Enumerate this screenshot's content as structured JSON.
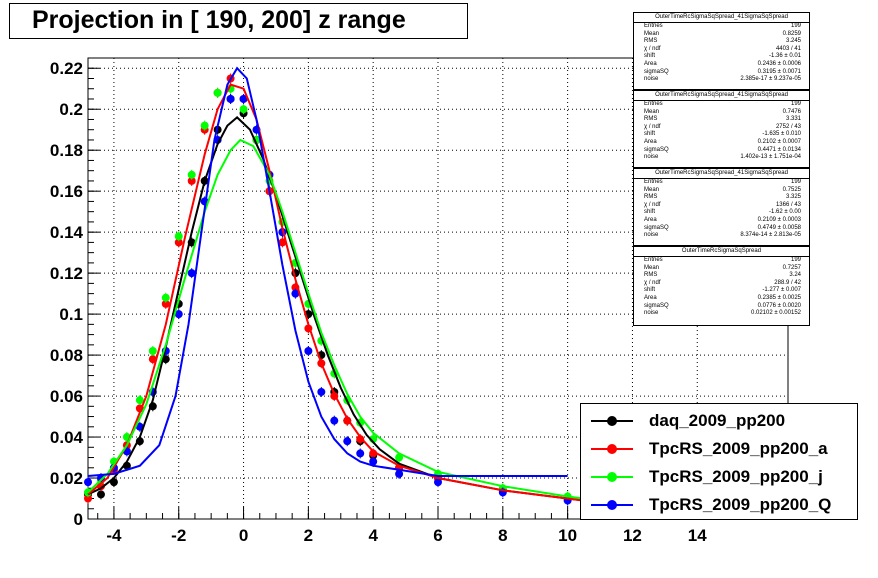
{
  "title": "Projection in [ 190, 200] z range",
  "colors": {
    "daq": "#000000",
    "a": "#ff0000",
    "j": "#00ff00",
    "Q": "#0000ff"
  },
  "stats": [
    {
      "name": "OuterTimeRcSigmaSqSpread_41SigmaSqSpread",
      "rows": [
        [
          "Entries",
          "199"
        ],
        [
          "Mean",
          "0.8259"
        ],
        [
          "RMS",
          "3.245"
        ],
        [
          "χ  / ndf",
          "4403 / 41"
        ],
        [
          "shift",
          "-1.36 ± 0.01"
        ],
        [
          "Area",
          "0.2436 ± 0.0006"
        ],
        [
          "sigmaSQ",
          "0.3195 ± 0.0071"
        ],
        [
          "noise",
          "2.385e-17 ± 9.237e-05"
        ]
      ]
    },
    {
      "name": "OuterTimeRcSigmaSqSpread_41SigmaSqSpread",
      "rows": [
        [
          "Entries",
          "199"
        ],
        [
          "Mean",
          "0.7476"
        ],
        [
          "RMS",
          "3.331"
        ],
        [
          "χ  / ndf",
          "2752 / 43"
        ],
        [
          "shift",
          "-1.635 ± 0.010"
        ],
        [
          "Area",
          "0.2102 ± 0.0007"
        ],
        [
          "sigmaSQ",
          "0.4471 ± 0.0134"
        ],
        [
          "noise",
          "1.402e-13 ± 1.751e-04"
        ]
      ]
    },
    {
      "name": "OuterTimeRcSigmaSqSpread_41SigmaSqSpread",
      "rows": [
        [
          "Entries",
          "199"
        ],
        [
          "Mean",
          "0.7525"
        ],
        [
          "RMS",
          "3.325"
        ],
        [
          "χ  / ndf",
          "1366 / 43"
        ],
        [
          "shift",
          "-1.62 ± 0.00"
        ],
        [
          "Area",
          "0.2109 ± 0.0003"
        ],
        [
          "sigmaSQ",
          "0.4749 ± 0.0058"
        ],
        [
          "noise",
          "8.374e-14 ± 2.813e-05"
        ]
      ]
    },
    {
      "name": "OuterTimeRcSigmaSqSpread",
      "rows": [
        [
          "Entries",
          "199"
        ],
        [
          "Mean",
          "0.7257"
        ],
        [
          "RMS",
          "3.24"
        ],
        [
          "χ  / ndf",
          "288.9 / 42"
        ],
        [
          "shift",
          "-1.277 ± 0.007"
        ],
        [
          "Area",
          "0.2385 ± 0.0025"
        ],
        [
          "sigmaSQ",
          "0.0776 ± 0.0020"
        ],
        [
          "noise",
          "0.02102 ± 0.00152"
        ]
      ]
    }
  ],
  "legend": [
    {
      "label": "daq_2009_pp200",
      "color": "#000000"
    },
    {
      "label": "TpcRS_2009_pp200_a",
      "color": "#ff0000"
    },
    {
      "label": "TpcRS_2009_pp200_j",
      "color": "#00ff00"
    },
    {
      "label": "TpcRS_2009_pp200_Q",
      "color": "#0000ff"
    }
  ],
  "chart_data": {
    "type": "scatter",
    "title": "Projection in [ 190, 200] z range",
    "xlim": [
      -4.8,
      16.8
    ],
    "ylim": [
      0,
      0.225
    ],
    "x_ticks": [
      -4,
      -2,
      0,
      2,
      4,
      6,
      8,
      10,
      12,
      14
    ],
    "y_ticks": [
      0,
      0.02,
      0.04,
      0.06,
      0.08,
      0.1,
      0.12,
      0.14,
      0.16,
      0.18,
      0.2,
      0.22
    ],
    "y_tick_labels": [
      "0",
      "0.02",
      "0.04",
      "0.06",
      "0.08",
      "0.1",
      "0.12",
      "0.14",
      "0.16",
      "0.18",
      "0.2",
      "0.22"
    ],
    "grid": true,
    "legend_position": "bottom-right",
    "series": [
      {
        "name": "daq_2009_pp200",
        "color": "#000000",
        "points": [
          [
            -4.8,
            0.012
          ],
          [
            -4.4,
            0.012
          ],
          [
            -4,
            0.018
          ],
          [
            -3.6,
            0.026
          ],
          [
            -3.2,
            0.038
          ],
          [
            -2.8,
            0.055
          ],
          [
            -2.4,
            0.078
          ],
          [
            -2,
            0.105
          ],
          [
            -1.6,
            0.135
          ],
          [
            -1.2,
            0.165
          ],
          [
            -0.8,
            0.19
          ],
          [
            -0.4,
            0.205
          ],
          [
            0,
            0.198
          ],
          [
            0.4,
            0.185
          ],
          [
            0.8,
            0.16
          ],
          [
            1.2,
            0.14
          ],
          [
            1.6,
            0.12
          ],
          [
            2,
            0.1
          ],
          [
            2.4,
            0.08
          ],
          [
            2.8,
            0.062
          ],
          [
            3.2,
            0.048
          ],
          [
            3.6,
            0.038
          ],
          [
            4,
            0.031
          ],
          [
            4.8,
            0.025
          ],
          [
            6,
            0.02
          ],
          [
            8,
            0.014
          ],
          [
            10,
            0.01
          ],
          [
            11,
            0.008
          ]
        ],
        "fit": [
          [
            -4.8,
            0.012
          ],
          [
            -4.4,
            0.015
          ],
          [
            -4,
            0.02
          ],
          [
            -3.6,
            0.028
          ],
          [
            -3.2,
            0.04
          ],
          [
            -2.8,
            0.058
          ],
          [
            -2.4,
            0.084
          ],
          [
            -2,
            0.112
          ],
          [
            -1.6,
            0.14
          ],
          [
            -1.2,
            0.165
          ],
          [
            -0.8,
            0.183
          ],
          [
            -0.5,
            0.192
          ],
          [
            -0.2,
            0.196
          ],
          [
            0.2,
            0.19
          ],
          [
            0.6,
            0.176
          ],
          [
            1,
            0.158
          ],
          [
            1.4,
            0.138
          ],
          [
            1.8,
            0.118
          ],
          [
            2.2,
            0.098
          ],
          [
            2.6,
            0.08
          ],
          [
            3,
            0.064
          ],
          [
            3.4,
            0.051
          ],
          [
            3.8,
            0.041
          ],
          [
            4.2,
            0.034
          ],
          [
            4.8,
            0.027
          ],
          [
            6,
            0.02
          ],
          [
            8,
            0.014
          ],
          [
            10,
            0.01
          ],
          [
            11,
            0.008
          ]
        ]
      },
      {
        "name": "TpcRS_2009_pp200_a",
        "color": "#ff0000",
        "points": [
          [
            -4.8,
            0.01
          ],
          [
            -4.4,
            0.016
          ],
          [
            -4,
            0.024
          ],
          [
            -3.6,
            0.036
          ],
          [
            -3.2,
            0.054
          ],
          [
            -2.8,
            0.078
          ],
          [
            -2.4,
            0.105
          ],
          [
            -2,
            0.135
          ],
          [
            -1.6,
            0.165
          ],
          [
            -1.2,
            0.19
          ],
          [
            -0.8,
            0.208
          ],
          [
            -0.4,
            0.215
          ],
          [
            0,
            0.205
          ],
          [
            0.4,
            0.185
          ],
          [
            0.8,
            0.16
          ],
          [
            1.2,
            0.135
          ],
          [
            1.6,
            0.113
          ],
          [
            2,
            0.093
          ],
          [
            2.4,
            0.076
          ],
          [
            2.8,
            0.06
          ],
          [
            3.2,
            0.048
          ],
          [
            3.6,
            0.039
          ],
          [
            4,
            0.032
          ],
          [
            4.8,
            0.025
          ],
          [
            6,
            0.02
          ],
          [
            8,
            0.014
          ],
          [
            10,
            0.01
          ],
          [
            11,
            0.008
          ]
        ],
        "fit": [
          [
            -4.8,
            0.012
          ],
          [
            -4.2,
            0.02
          ],
          [
            -3.6,
            0.036
          ],
          [
            -3,
            0.06
          ],
          [
            -2.4,
            0.095
          ],
          [
            -1.8,
            0.138
          ],
          [
            -1.2,
            0.178
          ],
          [
            -0.8,
            0.2
          ],
          [
            -0.4,
            0.212
          ],
          [
            0,
            0.21
          ],
          [
            0.4,
            0.195
          ],
          [
            0.8,
            0.17
          ],
          [
            1.2,
            0.142
          ],
          [
            1.6,
            0.117
          ],
          [
            2,
            0.095
          ],
          [
            2.4,
            0.076
          ],
          [
            2.8,
            0.061
          ],
          [
            3.2,
            0.049
          ],
          [
            3.6,
            0.04
          ],
          [
            4,
            0.033
          ],
          [
            4.8,
            0.026
          ],
          [
            6,
            0.02
          ],
          [
            8,
            0.014
          ],
          [
            10,
            0.01
          ],
          [
            11,
            0.008
          ]
        ]
      },
      {
        "name": "TpcRS_2009_pp200_j",
        "color": "#00ff00",
        "points": [
          [
            -4.8,
            0.013
          ],
          [
            -4.4,
            0.019
          ],
          [
            -4,
            0.028
          ],
          [
            -3.6,
            0.04
          ],
          [
            -3.2,
            0.058
          ],
          [
            -2.8,
            0.082
          ],
          [
            -2.4,
            0.108
          ],
          [
            -2,
            0.138
          ],
          [
            -1.6,
            0.168
          ],
          [
            -1.2,
            0.192
          ],
          [
            -0.8,
            0.208
          ],
          [
            -0.4,
            0.21
          ],
          [
            0,
            0.2
          ],
          [
            0.4,
            0.185
          ],
          [
            0.8,
            0.165
          ],
          [
            1.2,
            0.145
          ],
          [
            1.6,
            0.125
          ],
          [
            2,
            0.105
          ],
          [
            2.4,
            0.087
          ],
          [
            2.8,
            0.071
          ],
          [
            3.2,
            0.058
          ],
          [
            3.6,
            0.047
          ],
          [
            4,
            0.039
          ],
          [
            4.8,
            0.03
          ],
          [
            6,
            0.022
          ],
          [
            8,
            0.015
          ],
          [
            10,
            0.011
          ],
          [
            11,
            0.009
          ]
        ],
        "fit": [
          [
            -4.8,
            0.013
          ],
          [
            -4.2,
            0.022
          ],
          [
            -3.6,
            0.036
          ],
          [
            -3,
            0.056
          ],
          [
            -2.4,
            0.085
          ],
          [
            -1.8,
            0.118
          ],
          [
            -1.2,
            0.15
          ],
          [
            -0.8,
            0.168
          ],
          [
            -0.4,
            0.18
          ],
          [
            -0.1,
            0.185
          ],
          [
            0.3,
            0.182
          ],
          [
            0.8,
            0.168
          ],
          [
            1.2,
            0.15
          ],
          [
            1.6,
            0.13
          ],
          [
            2,
            0.11
          ],
          [
            2.4,
            0.091
          ],
          [
            2.8,
            0.075
          ],
          [
            3.2,
            0.061
          ],
          [
            3.6,
            0.05
          ],
          [
            4,
            0.042
          ],
          [
            4.8,
            0.032
          ],
          [
            6,
            0.023
          ],
          [
            8,
            0.016
          ],
          [
            10,
            0.011
          ],
          [
            11,
            0.009
          ]
        ]
      },
      {
        "name": "TpcRS_2009_pp200_Q",
        "color": "#0000ff",
        "points": [
          [
            -4.8,
            0.018
          ],
          [
            -4.4,
            0.02
          ],
          [
            -4,
            0.025
          ],
          [
            -3.6,
            0.033
          ],
          [
            -3.2,
            0.045
          ],
          [
            -2.8,
            0.062
          ],
          [
            -2.4,
            0.082
          ],
          [
            -2,
            0.1
          ],
          [
            -1.6,
            0.12
          ],
          [
            -1.2,
            0.155
          ],
          [
            -0.8,
            0.185
          ],
          [
            -0.4,
            0.205
          ],
          [
            0,
            0.205
          ],
          [
            0.4,
            0.19
          ],
          [
            0.8,
            0.168
          ],
          [
            1.2,
            0.14
          ],
          [
            1.6,
            0.11
          ],
          [
            2,
            0.082
          ],
          [
            2.4,
            0.062
          ],
          [
            2.8,
            0.048
          ],
          [
            3.2,
            0.038
          ],
          [
            3.6,
            0.032
          ],
          [
            4,
            0.028
          ],
          [
            4.8,
            0.022
          ],
          [
            6,
            0.018
          ],
          [
            8,
            0.013
          ],
          [
            10,
            0.009
          ],
          [
            11,
            0.008
          ]
        ],
        "fit": [
          [
            -4.8,
            0.021
          ],
          [
            -4,
            0.022
          ],
          [
            -3.2,
            0.026
          ],
          [
            -2.6,
            0.036
          ],
          [
            -2.1,
            0.06
          ],
          [
            -1.7,
            0.095
          ],
          [
            -1.3,
            0.14
          ],
          [
            -0.9,
            0.185
          ],
          [
            -0.5,
            0.212
          ],
          [
            -0.2,
            0.22
          ],
          [
            0.1,
            0.215
          ],
          [
            0.4,
            0.195
          ],
          [
            0.8,
            0.16
          ],
          [
            1.2,
            0.124
          ],
          [
            1.6,
            0.092
          ],
          [
            2,
            0.067
          ],
          [
            2.4,
            0.05
          ],
          [
            2.8,
            0.039
          ],
          [
            3.2,
            0.032
          ],
          [
            3.6,
            0.028
          ],
          [
            4,
            0.026
          ],
          [
            4.8,
            0.024
          ],
          [
            6,
            0.021
          ],
          [
            8,
            0.021
          ],
          [
            10,
            0.021
          ]
        ]
      }
    ]
  }
}
